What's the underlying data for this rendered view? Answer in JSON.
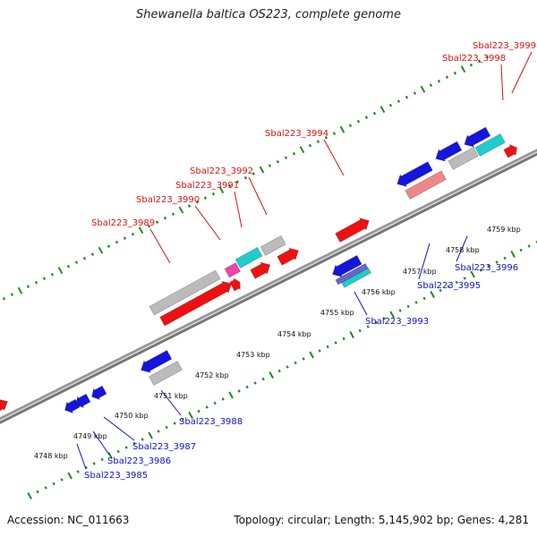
{
  "title": "Shewanella baltica OS223, complete genome",
  "footer": {
    "accession": "Accession: NC_011663",
    "stats": "Topology: circular; Length: 5,145,902 bp; Genes: 4,281"
  },
  "colors": {
    "red": "#ee1111",
    "blue": "#1515dd",
    "gray": "#bbbbbb",
    "cyan": "#22cccc",
    "pink": "#ee44aa",
    "salmon": "#ee8888",
    "backbone": "#888888",
    "tick": "#228822",
    "label_top": "#dd1111",
    "label_bottom": "#1111cc"
  },
  "kbp_labels": [
    "4748 kbp",
    "4749 kbp",
    "4750 kbp",
    "4751 kbp",
    "4752 kbp",
    "4753 kbp",
    "4754 kbp",
    "4755 kbp",
    "4756 kbp",
    "4757 kbp",
    "4758 kbp",
    "4759 kbp"
  ],
  "top_labels": [
    "Sbal223_3999",
    "Sbal223_3998",
    "Sbal223_3994",
    "Sbal223_3992",
    "Sbal223_3991",
    "Sbal223_3990",
    "Sbal223_3989"
  ],
  "bottom_labels": [
    "Sbal223_3996",
    "Sbal223_3995",
    "Sbal223_3993",
    "Sbal223_3988",
    "Sbal223_3987",
    "Sbal223_3986",
    "Sbal223_3985"
  ]
}
